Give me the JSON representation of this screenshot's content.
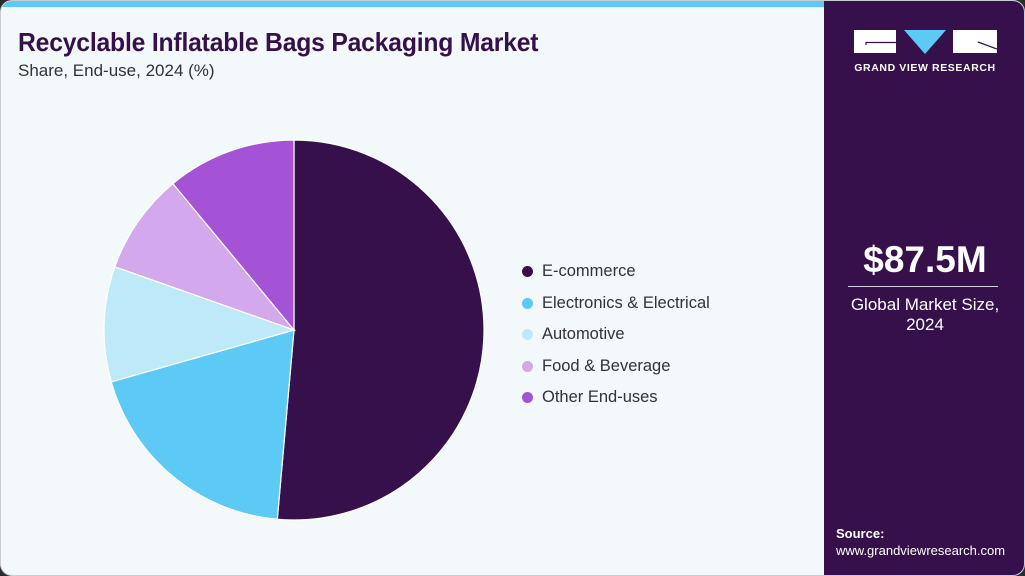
{
  "header": {
    "title": "Recyclable Inflatable Bags Packaging Market",
    "subtitle": "Share, End-use, 2024 (%)"
  },
  "colors": {
    "accent_bar": "#5ccaf5",
    "panel_bg": "#36104a",
    "card_bg": "#f3f8fb",
    "title": "#36104a"
  },
  "legend": {
    "items": [
      {
        "label": "E-commerce",
        "color": "#36104a"
      },
      {
        "label": "Electronics & Electrical",
        "color": "#5ccaf5"
      },
      {
        "label": "Automotive",
        "color": "#bde9f9"
      },
      {
        "label": "Food & Beverage",
        "color": "#d3a8ec"
      },
      {
        "label": "Other End-uses",
        "color": "#a452d6"
      }
    ]
  },
  "side_panel": {
    "logo_text": "GRAND VIEW RESEARCH",
    "market_size": "$87.5M",
    "market_label_line1": "Global Market Size,",
    "market_label_line2": "2024",
    "source_label": "Source:",
    "source_url": "www.grandviewresearch.com"
  },
  "chart_data": {
    "type": "pie",
    "title": "Recyclable Inflatable Bags Packaging Market",
    "subtitle": "Share, End-use, 2024 (%)",
    "categories": [
      "E-commerce",
      "Electronics & Electrical",
      "Automotive",
      "Food & Beverage",
      "Other End-uses"
    ],
    "values": [
      51.4,
      19.2,
      9.8,
      8.6,
      11.0
    ],
    "colors": [
      "#36104a",
      "#5ccaf5",
      "#bde9f9",
      "#d3a8ec",
      "#a452d6"
    ],
    "start_angle_deg": 0,
    "direction": "clockwise",
    "legend_position": "right",
    "unit": "%"
  }
}
